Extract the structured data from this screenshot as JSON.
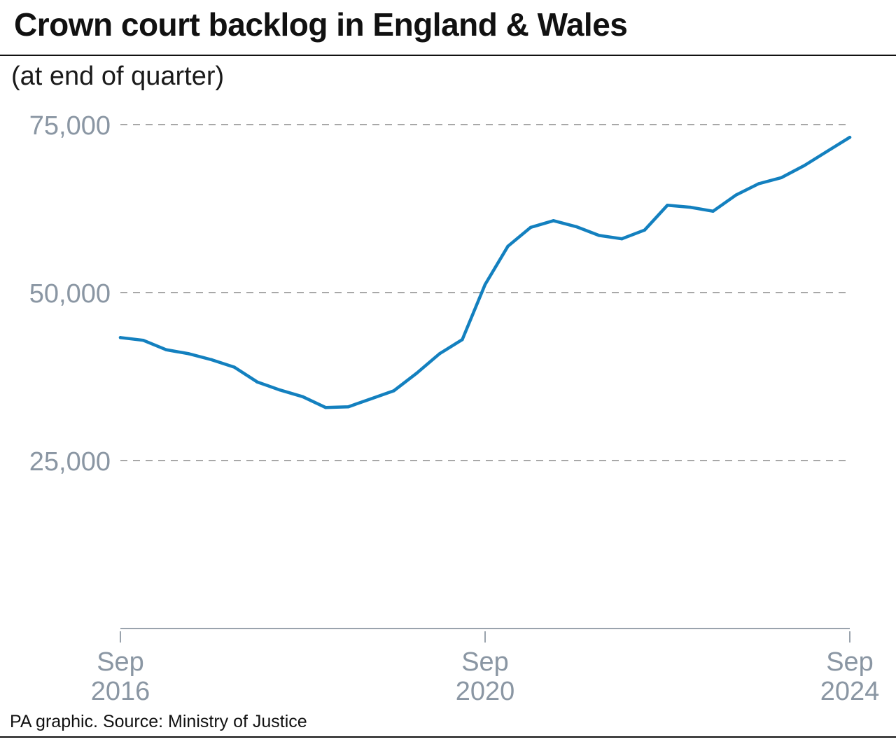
{
  "header": {
    "title": "Crown court backlog in England & Wales",
    "subtitle": "(at end of quarter)"
  },
  "footer": {
    "source": "PA graphic. Source: Ministry of Justice"
  },
  "colors": {
    "line": "#1380bf",
    "grid": "#8c8c8c",
    "axis_text": "#8a96a3"
  },
  "chart_data": {
    "type": "line",
    "title": "Crown court backlog in England & Wales",
    "subtitle": "(at end of quarter)",
    "xlabel": "",
    "ylabel": "",
    "ylim": [
      0,
      75000
    ],
    "yticks": [
      {
        "value": 75000,
        "label": "75,000"
      },
      {
        "value": 50000,
        "label": "50,000"
      },
      {
        "value": 25000,
        "label": "25,000"
      }
    ],
    "xticks": [
      {
        "date": "2016-09",
        "line1": "Sep",
        "line2": "2016"
      },
      {
        "date": "2020-09",
        "line1": "Sep",
        "line2": "2020"
      },
      {
        "date": "2024-09",
        "line1": "Sep",
        "line2": "2024"
      }
    ],
    "grid": true,
    "legend": "none",
    "series": [
      {
        "x": [
          "2016-09",
          "2016-12",
          "2017-03",
          "2017-06",
          "2017-09",
          "2017-12",
          "2018-03",
          "2018-06",
          "2018-09",
          "2018-12",
          "2019-03",
          "2019-06",
          "2019-09",
          "2019-12",
          "2020-03",
          "2020-06",
          "2020-09",
          "2020-12",
          "2021-03",
          "2021-06",
          "2021-09",
          "2021-12",
          "2022-03",
          "2022-06",
          "2022-09",
          "2022-12",
          "2023-03",
          "2023-06",
          "2023-09",
          "2023-12",
          "2024-03",
          "2024-06",
          "2024-09"
        ],
        "values": [
          43300,
          42900,
          41500,
          40900,
          40000,
          38900,
          36700,
          35500,
          34500,
          32900,
          33000,
          34200,
          35400,
          38000,
          40900,
          43000,
          51200,
          56900,
          59700,
          60700,
          59800,
          58500,
          58000,
          59300,
          63000,
          62700,
          62100,
          64500,
          66200,
          67100,
          68900,
          71000,
          73100
        ]
      }
    ]
  }
}
